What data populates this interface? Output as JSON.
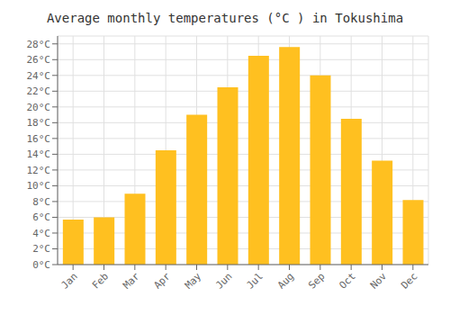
{
  "chart_data": {
    "type": "bar",
    "title": "Average monthly temperatures (°C ) in Tokushima",
    "categories": [
      "Jan",
      "Feb",
      "Mar",
      "Apr",
      "May",
      "Jun",
      "Jul",
      "Aug",
      "Sep",
      "Oct",
      "Nov",
      "Dec"
    ],
    "values": [
      5.7,
      6.0,
      9.0,
      14.5,
      19.0,
      22.5,
      26.5,
      27.6,
      24.0,
      18.5,
      13.2,
      8.2
    ],
    "color": "#FFC020",
    "ylim": [
      0,
      29
    ],
    "yticks": [
      {
        "value": 0,
        "label": "0°C"
      },
      {
        "value": 2,
        "label": "2°C"
      },
      {
        "value": 4,
        "label": "4°C"
      },
      {
        "value": 6,
        "label": "6°C"
      },
      {
        "value": 8,
        "label": "8°C"
      },
      {
        "value": 10,
        "label": "10°C"
      },
      {
        "value": 12,
        "label": "12°C"
      },
      {
        "value": 14,
        "label": "14°C"
      },
      {
        "value": 16,
        "label": "16°C"
      },
      {
        "value": 18,
        "label": "18°C"
      },
      {
        "value": 20,
        "label": "20°C"
      },
      {
        "value": 22,
        "label": "22°C"
      },
      {
        "value": 24,
        "label": "24°C"
      },
      {
        "value": 26,
        "label": "26°C"
      },
      {
        "value": 28,
        "label": "28°C"
      }
    ],
    "grid": true
  }
}
